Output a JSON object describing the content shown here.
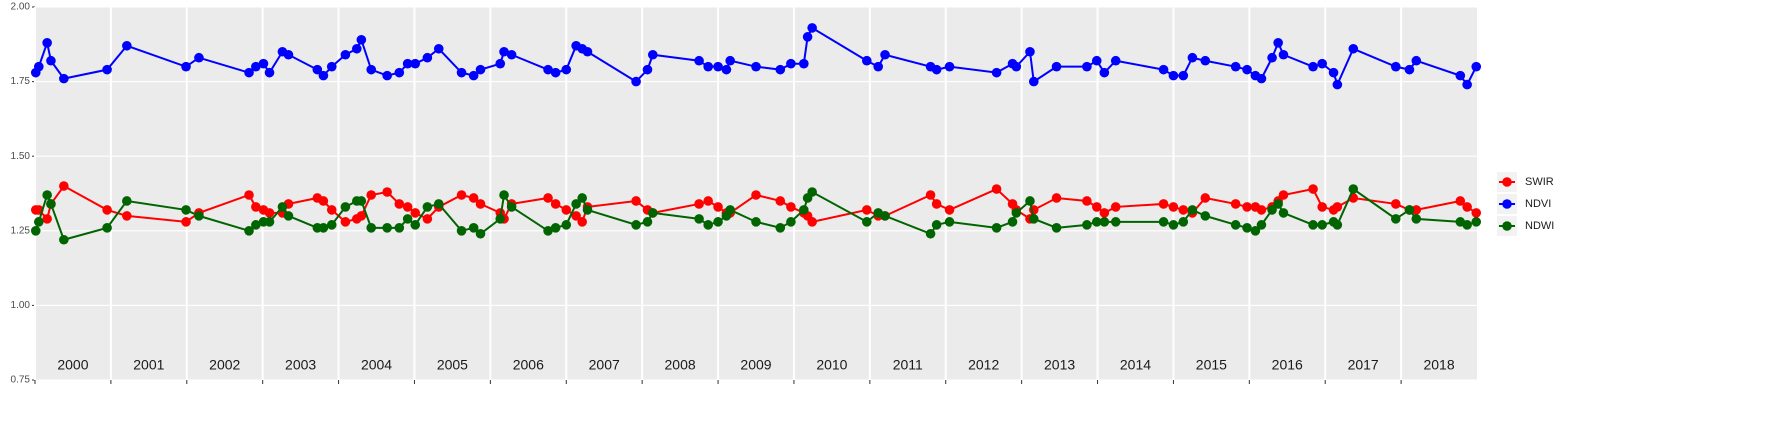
{
  "chart_data": {
    "type": "line",
    "x": [
      2000.01,
      2000.05,
      2000.16,
      2000.21,
      2000.38,
      2000.95,
      2001.21,
      2001.99,
      2002.16,
      2002.82,
      2002.91,
      2003.01,
      2003.09,
      2003.26,
      2003.34,
      2003.72,
      2003.8,
      2003.91,
      2004.09,
      2004.24,
      2004.3,
      2004.43,
      2004.64,
      2004.8,
      2004.91,
      2005.01,
      2005.17,
      2005.32,
      2005.62,
      2005.78,
      2005.87,
      2006.13,
      2006.18,
      2006.28,
      2006.76,
      2006.86,
      2007.0,
      2007.13,
      2007.21,
      2007.28,
      2007.92,
      2008.07,
      2008.14,
      2008.75,
      2008.87,
      2009.0,
      2009.11,
      2009.16,
      2009.5,
      2009.82,
      2009.96,
      2010.13,
      2010.18,
      2010.24,
      2010.96,
      2011.11,
      2011.2,
      2011.8,
      2011.88,
      2012.05,
      2012.67,
      2012.88,
      2012.93,
      2013.11,
      2013.16,
      2013.46,
      2013.86,
      2013.99,
      2014.09,
      2014.24,
      2014.87,
      2015.0,
      2015.13,
      2015.25,
      2015.42,
      2015.82,
      2015.97,
      2016.08,
      2016.16,
      2016.3,
      2016.38,
      2016.45,
      2016.84,
      2016.96,
      2017.11,
      2017.16,
      2017.37,
      2017.93,
      2018.11,
      2018.2,
      2018.78,
      2018.87,
      2018.99
    ],
    "series": [
      {
        "name": "SWIR",
        "color": "#ff0000",
        "values": [
          1.32,
          1.32,
          1.29,
          1.34,
          1.4,
          1.32,
          1.3,
          1.28,
          1.31,
          1.37,
          1.33,
          1.32,
          1.31,
          1.31,
          1.34,
          1.36,
          1.35,
          1.32,
          1.28,
          1.29,
          1.3,
          1.37,
          1.38,
          1.34,
          1.33,
          1.31,
          1.29,
          1.33,
          1.37,
          1.36,
          1.34,
          1.31,
          1.29,
          1.34,
          1.36,
          1.34,
          1.32,
          1.3,
          1.28,
          1.33,
          1.35,
          1.32,
          1.31,
          1.34,
          1.35,
          1.33,
          1.31,
          1.31,
          1.37,
          1.35,
          1.33,
          1.31,
          1.3,
          1.28,
          1.32,
          1.3,
          1.3,
          1.37,
          1.34,
          1.32,
          1.39,
          1.34,
          1.32,
          1.29,
          1.32,
          1.36,
          1.35,
          1.33,
          1.31,
          1.33,
          1.34,
          1.33,
          1.32,
          1.31,
          1.36,
          1.34,
          1.33,
          1.33,
          1.32,
          1.33,
          1.35,
          1.37,
          1.39,
          1.33,
          1.32,
          1.33,
          1.36,
          1.34,
          1.32,
          1.32,
          1.35,
          1.33,
          1.31
        ]
      },
      {
        "name": "NDVI",
        "color": "#0000ff",
        "values": [
          1.78,
          1.8,
          1.88,
          1.82,
          1.76,
          1.79,
          1.87,
          1.8,
          1.83,
          1.78,
          1.8,
          1.81,
          1.78,
          1.85,
          1.84,
          1.79,
          1.77,
          1.8,
          1.84,
          1.86,
          1.89,
          1.79,
          1.77,
          1.78,
          1.81,
          1.81,
          1.83,
          1.86,
          1.78,
          1.77,
          1.79,
          1.81,
          1.85,
          1.84,
          1.79,
          1.78,
          1.79,
          1.87,
          1.86,
          1.85,
          1.75,
          1.79,
          1.84,
          1.82,
          1.8,
          1.8,
          1.79,
          1.82,
          1.8,
          1.79,
          1.81,
          1.81,
          1.9,
          1.93,
          1.82,
          1.8,
          1.84,
          1.8,
          1.79,
          1.8,
          1.78,
          1.81,
          1.8,
          1.85,
          1.75,
          1.8,
          1.8,
          1.82,
          1.78,
          1.82,
          1.79,
          1.77,
          1.77,
          1.83,
          1.82,
          1.8,
          1.79,
          1.77,
          1.76,
          1.83,
          1.88,
          1.84,
          1.8,
          1.81,
          1.78,
          1.74,
          1.86,
          1.8,
          1.79,
          1.82,
          1.77,
          1.74,
          1.8
        ]
      },
      {
        "name": "NDWI",
        "color": "#006400",
        "values": [
          1.25,
          1.28,
          1.37,
          1.34,
          1.22,
          1.26,
          1.35,
          1.32,
          1.3,
          1.25,
          1.27,
          1.28,
          1.28,
          1.33,
          1.3,
          1.26,
          1.26,
          1.27,
          1.33,
          1.35,
          1.35,
          1.26,
          1.26,
          1.26,
          1.29,
          1.27,
          1.33,
          1.34,
          1.25,
          1.26,
          1.24,
          1.29,
          1.37,
          1.33,
          1.25,
          1.26,
          1.27,
          1.34,
          1.36,
          1.32,
          1.27,
          1.28,
          1.31,
          1.29,
          1.27,
          1.28,
          1.3,
          1.32,
          1.28,
          1.26,
          1.28,
          1.32,
          1.36,
          1.38,
          1.28,
          1.31,
          1.3,
          1.24,
          1.27,
          1.28,
          1.26,
          1.28,
          1.31,
          1.35,
          1.29,
          1.26,
          1.27,
          1.28,
          1.28,
          1.28,
          1.28,
          1.27,
          1.28,
          1.32,
          1.3,
          1.27,
          1.26,
          1.25,
          1.27,
          1.32,
          1.34,
          1.31,
          1.27,
          1.27,
          1.28,
          1.27,
          1.39,
          1.29,
          1.32,
          1.29,
          1.28,
          1.27,
          1.28
        ]
      }
    ],
    "xlim": [
      2000,
      2019
    ],
    "xticks": [
      2000,
      2001,
      2002,
      2003,
      2004,
      2005,
      2006,
      2007,
      2008,
      2009,
      2010,
      2011,
      2012,
      2013,
      2014,
      2015,
      2016,
      2017,
      2018
    ],
    "ylim": [
      0.75,
      2.0
    ],
    "yticks": [
      {
        "value": 0.75,
        "label": "0.75"
      },
      {
        "value": 1.0,
        "label": "1.00"
      },
      {
        "value": 1.25,
        "label": "1.25"
      },
      {
        "value": 1.5,
        "label": "1.50"
      },
      {
        "value": 1.75,
        "label": "1.75"
      },
      {
        "value": 2.0,
        "label": "2.00"
      }
    ],
    "grid": true,
    "legend": "right"
  }
}
